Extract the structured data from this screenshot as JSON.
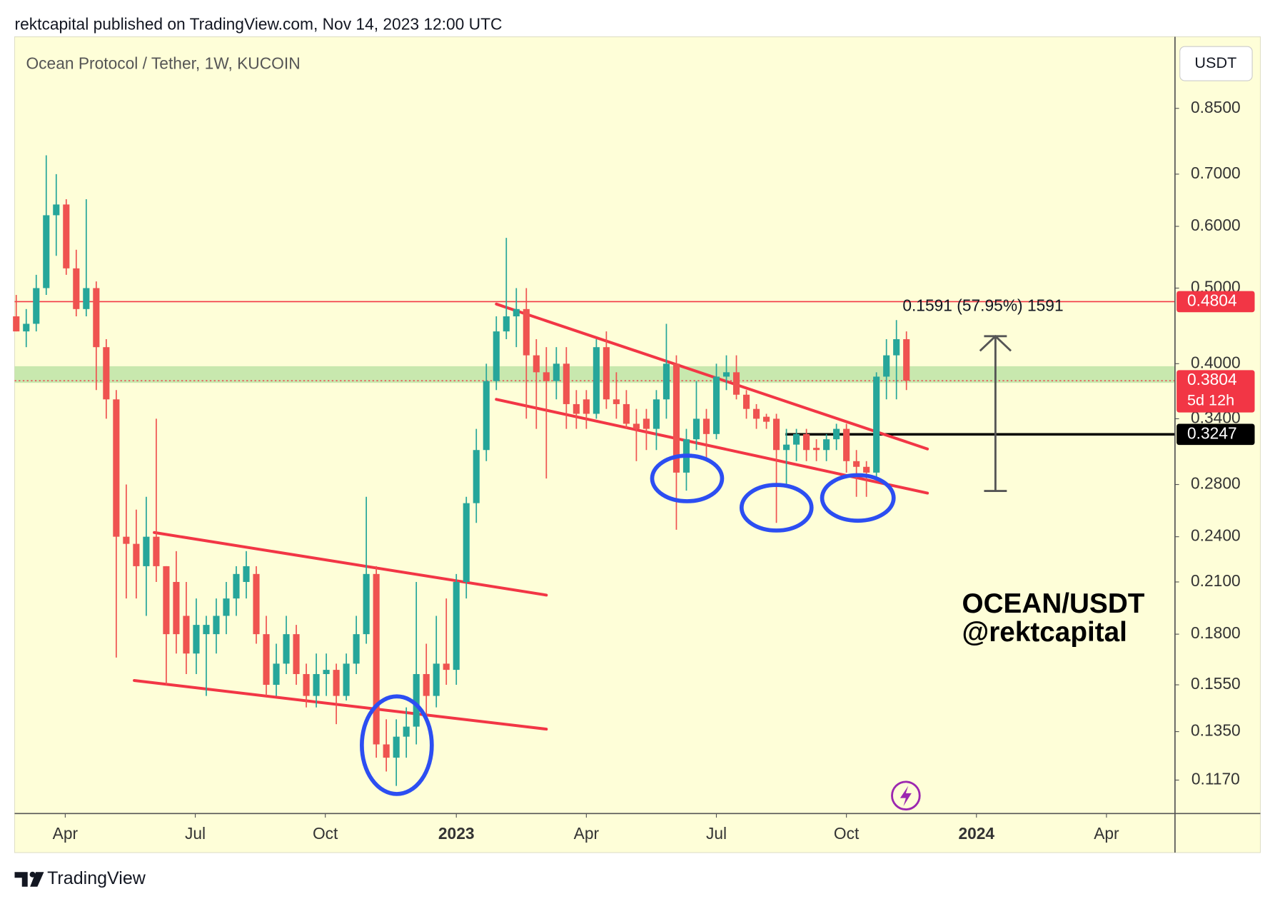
{
  "header": "rektcapital published on TradingView.com, Nov 14, 2023 12:00 UTC",
  "footer": "TradingView",
  "chart_data": {
    "type": "candlestick",
    "title": "Ocean Protocol / Tether, 1W, KUCOIN",
    "currency": "USDT",
    "annotations": [
      "OCEAN/USDT",
      "@rektcapital"
    ],
    "up_color": "#26a69a",
    "down_color": "#ef5350",
    "log_scale": true,
    "open": [
      0.46,
      0.44,
      0.45,
      0.5,
      0.62,
      0.64,
      0.53,
      0.47,
      0.5,
      0.42,
      0.36,
      0.24,
      0.235,
      0.22,
      0.24,
      0.22,
      0.21,
      0.19,
      0.17,
      0.18,
      0.18,
      0.19,
      0.2,
      0.21,
      0.215,
      0.18,
      0.155,
      0.165,
      0.18,
      0.16,
      0.15,
      0.16,
      0.162,
      0.15,
      0.165,
      0.18,
      0.215,
      0.13,
      0.125,
      0.133,
      0.137,
      0.16,
      0.15,
      0.165,
      0.162,
      0.21,
      0.265,
      0.31,
      0.38,
      0.44,
      0.46,
      0.47,
      0.41,
      0.39,
      0.38,
      0.4,
      0.355,
      0.36,
      0.345,
      0.42,
      0.36,
      0.355,
      0.335,
      0.34,
      0.33,
      0.36,
      0.4,
      0.29,
      0.32,
      0.34,
      0.325,
      0.385,
      0.39,
      0.365,
      0.35,
      0.342,
      0.34,
      0.31,
      0.315,
      0.325,
      0.312,
      0.31,
      0.32,
      0.33,
      0.3,
      0.295,
      0.29,
      0.385,
      0.41,
      0.43
    ],
    "high": [
      0.49,
      0.47,
      0.52,
      0.74,
      0.7,
      0.65,
      0.56,
      0.65,
      0.51,
      0.43,
      0.37,
      0.28,
      0.26,
      0.27,
      0.34,
      0.22,
      0.23,
      0.21,
      0.2,
      0.19,
      0.2,
      0.21,
      0.22,
      0.23,
      0.22,
      0.19,
      0.175,
      0.19,
      0.185,
      0.165,
      0.17,
      0.17,
      0.165,
      0.17,
      0.19,
      0.27,
      0.22,
      0.14,
      0.14,
      0.145,
      0.21,
      0.175,
      0.19,
      0.2,
      0.215,
      0.27,
      0.33,
      0.4,
      0.46,
      0.58,
      0.5,
      0.5,
      0.43,
      0.42,
      0.42,
      0.42,
      0.37,
      0.37,
      0.43,
      0.44,
      0.39,
      0.37,
      0.35,
      0.35,
      0.37,
      0.45,
      0.41,
      0.33,
      0.38,
      0.35,
      0.4,
      0.41,
      0.41,
      0.37,
      0.355,
      0.345,
      0.345,
      0.33,
      0.33,
      0.33,
      0.32,
      0.325,
      0.335,
      0.335,
      0.31,
      0.3,
      0.39,
      0.43,
      0.455,
      0.44
    ],
    "low": [
      0.44,
      0.42,
      0.44,
      0.49,
      0.55,
      0.52,
      0.46,
      0.46,
      0.37,
      0.34,
      0.168,
      0.2,
      0.2,
      0.19,
      0.21,
      0.155,
      0.17,
      0.16,
      0.16,
      0.15,
      0.17,
      0.18,
      0.19,
      0.2,
      0.175,
      0.15,
      0.15,
      0.16,
      0.155,
      0.145,
      0.145,
      0.15,
      0.138,
      0.148,
      0.16,
      0.175,
      0.125,
      0.12,
      0.115,
      0.125,
      0.13,
      0.14,
      0.145,
      0.155,
      0.155,
      0.2,
      0.25,
      0.3,
      0.37,
      0.43,
      0.42,
      0.34,
      0.33,
      0.285,
      0.36,
      0.33,
      0.33,
      0.33,
      0.34,
      0.35,
      0.34,
      0.33,
      0.3,
      0.31,
      0.31,
      0.34,
      0.245,
      0.275,
      0.31,
      0.3,
      0.32,
      0.37,
      0.36,
      0.34,
      0.33,
      0.33,
      0.25,
      0.28,
      0.3,
      0.3,
      0.3,
      0.3,
      0.31,
      0.29,
      0.27,
      0.27,
      0.285,
      0.36,
      0.36,
      0.37
    ],
    "close": [
      0.44,
      0.45,
      0.5,
      0.62,
      0.64,
      0.53,
      0.47,
      0.5,
      0.42,
      0.36,
      0.24,
      0.235,
      0.22,
      0.24,
      0.22,
      0.18,
      0.18,
      0.17,
      0.185,
      0.185,
      0.19,
      0.2,
      0.215,
      0.22,
      0.18,
      0.155,
      0.165,
      0.18,
      0.16,
      0.15,
      0.16,
      0.162,
      0.15,
      0.165,
      0.18,
      0.215,
      0.13,
      0.125,
      0.133,
      0.137,
      0.16,
      0.15,
      0.165,
      0.162,
      0.21,
      0.265,
      0.31,
      0.38,
      0.44,
      0.46,
      0.47,
      0.41,
      0.39,
      0.38,
      0.4,
      0.355,
      0.345,
      0.345,
      0.42,
      0.36,
      0.355,
      0.335,
      0.33,
      0.33,
      0.36,
      0.4,
      0.29,
      0.32,
      0.34,
      0.325,
      0.385,
      0.39,
      0.365,
      0.35,
      0.34,
      0.337,
      0.31,
      0.315,
      0.325,
      0.31,
      0.31,
      0.32,
      0.33,
      0.3,
      0.295,
      0.29,
      0.385,
      0.41,
      0.43,
      0.3804
    ],
    "xlim": [
      -0.16,
      115.85
    ],
    "xticks": [
      {
        "value": 4.9,
        "label": "Apr"
      },
      {
        "value": 17.9,
        "label": "Jul"
      },
      {
        "value": 30.9,
        "label": "Oct"
      },
      {
        "value": 44.0,
        "label": "2023"
      },
      {
        "value": 57.0,
        "label": "Apr"
      },
      {
        "value": 70.0,
        "label": "Jul"
      },
      {
        "value": 83.0,
        "label": "Oct"
      },
      {
        "value": 96.0,
        "label": "2024"
      },
      {
        "value": 109.0,
        "label": "Apr"
      }
    ],
    "ylim": [
      0.106,
      1.05
    ],
    "yticks": [
      {
        "value": 0.85,
        "label": "0.8500"
      },
      {
        "value": 0.7,
        "label": "0.7000"
      },
      {
        "value": 0.6,
        "label": "0.6000"
      },
      {
        "value": 0.5,
        "label": "0.5000"
      },
      {
        "value": 0.4,
        "label": "0.4000"
      },
      {
        "value": 0.34,
        "label": "0.3400"
      },
      {
        "value": 0.28,
        "label": "0.2800"
      },
      {
        "value": 0.24,
        "label": "0.2400"
      },
      {
        "value": 0.21,
        "label": "0.2100"
      },
      {
        "value": 0.18,
        "label": "0.1800"
      },
      {
        "value": 0.155,
        "label": "0.1550"
      },
      {
        "value": 0.135,
        "label": "0.1350"
      },
      {
        "value": 0.117,
        "label": "0.1170"
      }
    ],
    "zone": [
      0.378,
      0.397
    ],
    "price_lines": [
      {
        "value": 0.4804,
        "color": "#f23645",
        "style": "solid",
        "from": -0.16
      },
      {
        "value": 0.3804,
        "color": "#f23645",
        "style": "dotted",
        "from": -0.16,
        "countdown": "5d 12h"
      },
      {
        "value": 0.3247,
        "color": "#000000",
        "style": "thick",
        "from": 76.9
      }
    ],
    "trendlines": [
      {
        "x": [
          13.8,
          53.0
        ],
        "y": [
          0.243,
          0.202
        ]
      },
      {
        "x": [
          11.8,
          53.0
        ],
        "y": [
          0.157,
          0.136
        ]
      },
      {
        "x": [
          48.0,
          91.1
        ],
        "y": [
          0.477,
          0.311
        ]
      },
      {
        "x": [
          48.0,
          91.1
        ],
        "y": [
          0.36,
          0.273
        ]
      }
    ],
    "measure": {
      "x": 97.9,
      "from": 0.2747,
      "to": 0.4338,
      "label": "0.1591 (57.95%) 1591"
    }
  }
}
